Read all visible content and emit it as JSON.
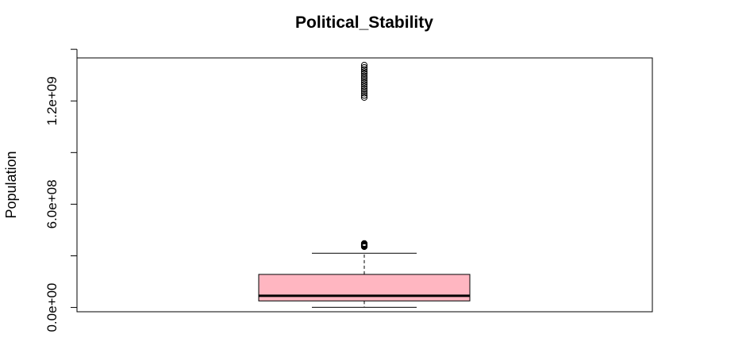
{
  "chart_data": {
    "type": "boxplot",
    "title": "Political_Stability",
    "xlabel": "",
    "ylabel": "Population",
    "ylim": [
      -25000000,
      1450000000
    ],
    "y_ticks": [
      0,
      300000000,
      600000000,
      900000000,
      1200000000,
      1500000000
    ],
    "y_tick_labels": [
      "0.0e+00",
      "",
      "6.0e+08",
      "",
      "1.2e+09",
      ""
    ],
    "colors": {
      "box_fill": "#ffb6c1",
      "stroke": "#000000"
    },
    "box": {
      "lower_whisker": 900000,
      "q1": 38000000,
      "median": 68000000,
      "q3": 192000000,
      "upper_whisker": 315000000
    },
    "outliers": [
      353000000,
      356000000,
      359000000,
      362000000,
      365000000,
      368000000,
      372000000,
      1220000000,
      1232000000,
      1245000000,
      1258000000,
      1270000000,
      1283000000,
      1296000000,
      1308000000,
      1320000000,
      1333000000,
      1345000000,
      1358000000,
      1370000000,
      1383000000,
      1395000000,
      1408000000
    ]
  }
}
